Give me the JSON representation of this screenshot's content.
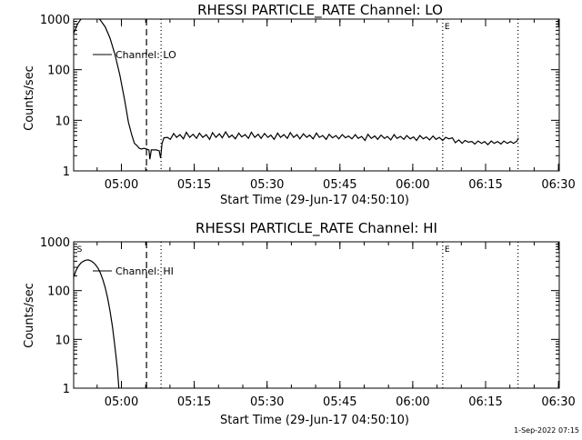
{
  "footer_timestamp": "1-Sep-2022 07:15",
  "chart_data": [
    {
      "type": "line",
      "title": "RHESSI PARTICLE_RATE Channel: LO",
      "xlabel": "Start Time (29-Jun-17 04:50:10)",
      "ylabel": "Counts/sec",
      "yscale": "log",
      "xlim_minutes_from_start": [
        0,
        100
      ],
      "ylim": [
        1,
        1000
      ],
      "x_ticks": [
        {
          "min": 9.83,
          "label": "05:00"
        },
        {
          "min": 24.83,
          "label": "05:15"
        },
        {
          "min": 39.83,
          "label": "05:30"
        },
        {
          "min": 54.83,
          "label": "05:45"
        },
        {
          "min": 69.83,
          "label": "06:00"
        },
        {
          "min": 84.83,
          "label": "06:15"
        },
        {
          "min": 99.83,
          "label": "06:30"
        }
      ],
      "y_ticks": [
        {
          "value": 1,
          "label": "1"
        },
        {
          "value": 10,
          "label": "10"
        },
        {
          "value": 100,
          "label": "100"
        },
        {
          "value": 1000,
          "label": "1000"
        }
      ],
      "legend": "Channel: LO",
      "legend_position": "upper-left",
      "vertical_lines": [
        {
          "min": 15.0,
          "style": "dashed",
          "label": ""
        },
        {
          "min": 18.0,
          "style": "dotted",
          "label": ""
        },
        {
          "min": 76.0,
          "style": "dotted",
          "label": "E"
        },
        {
          "min": 91.5,
          "style": "dotted",
          "label": ""
        }
      ],
      "series": [
        {
          "points": [
            [
              0.0,
              520
            ],
            [
              0.8,
              800
            ],
            [
              1.5,
              1000
            ],
            [
              2.5,
              1150
            ],
            [
              3.5,
              1200
            ],
            [
              4.5,
              1150
            ],
            [
              5.5,
              950
            ],
            [
              6.5,
              700
            ],
            [
              7.5,
              420
            ],
            [
              8.5,
              200
            ],
            [
              9.5,
              80
            ],
            [
              10.5,
              25
            ],
            [
              11.3,
              9
            ],
            [
              12.0,
              5
            ],
            [
              12.5,
              3.5
            ],
            [
              13.0,
              3.2
            ],
            [
              13.5,
              2.8
            ],
            [
              14.0,
              2.7
            ],
            [
              14.5,
              2.8
            ],
            [
              15.0,
              2.7
            ],
            [
              15.5,
              2.6
            ],
            [
              15.7,
              1.7
            ],
            [
              16.0,
              2.6
            ],
            [
              17.0,
              2.6
            ],
            [
              17.6,
              2.5
            ],
            [
              17.9,
              1.8
            ],
            [
              18.2,
              3.5
            ],
            [
              18.6,
              4.5
            ],
            [
              19.3,
              4.6
            ],
            [
              19.9,
              4.2
            ],
            [
              20.6,
              5.5
            ],
            [
              21.2,
              4.6
            ],
            [
              21.9,
              5.2
            ],
            [
              22.6,
              4.3
            ],
            [
              23.2,
              5.8
            ],
            [
              23.9,
              4.6
            ],
            [
              24.6,
              5.3
            ],
            [
              25.3,
              4.4
            ],
            [
              25.9,
              5.6
            ],
            [
              26.6,
              4.6
            ],
            [
              27.3,
              5.2
            ],
            [
              28.0,
              4.2
            ],
            [
              28.6,
              5.7
            ],
            [
              29.3,
              4.6
            ],
            [
              30.0,
              5.4
            ],
            [
              30.6,
              4.5
            ],
            [
              31.3,
              5.9
            ],
            [
              32.0,
              4.6
            ],
            [
              32.6,
              5.1
            ],
            [
              33.3,
              4.3
            ],
            [
              34.0,
              5.6
            ],
            [
              34.6,
              4.7
            ],
            [
              35.3,
              5.2
            ],
            [
              36.0,
              4.4
            ],
            [
              36.6,
              5.8
            ],
            [
              37.3,
              4.6
            ],
            [
              38.0,
              5.3
            ],
            [
              38.6,
              4.4
            ],
            [
              39.3,
              5.5
            ],
            [
              40.0,
              4.6
            ],
            [
              40.6,
              5.1
            ],
            [
              41.3,
              4.2
            ],
            [
              42.0,
              5.6
            ],
            [
              42.6,
              4.6
            ],
            [
              43.3,
              5.2
            ],
            [
              44.0,
              4.4
            ],
            [
              44.6,
              5.7
            ],
            [
              45.3,
              4.6
            ],
            [
              46.0,
              5.2
            ],
            [
              46.6,
              4.3
            ],
            [
              47.3,
              5.4
            ],
            [
              48.0,
              4.6
            ],
            [
              48.6,
              5.1
            ],
            [
              49.3,
              4.3
            ],
            [
              50.0,
              5.6
            ],
            [
              50.6,
              4.6
            ],
            [
              51.3,
              5.0
            ],
            [
              52.0,
              4.2
            ],
            [
              52.6,
              5.3
            ],
            [
              53.3,
              4.5
            ],
            [
              54.0,
              5.0
            ],
            [
              54.6,
              4.3
            ],
            [
              55.3,
              5.2
            ],
            [
              56.0,
              4.5
            ],
            [
              56.6,
              4.9
            ],
            [
              57.3,
              4.3
            ],
            [
              58.0,
              5.2
            ],
            [
              58.6,
              4.4
            ],
            [
              59.3,
              4.8
            ],
            [
              60.0,
              4.0
            ],
            [
              60.6,
              5.3
            ],
            [
              61.3,
              4.4
            ],
            [
              62.0,
              4.9
            ],
            [
              62.6,
              4.2
            ],
            [
              63.3,
              5.1
            ],
            [
              64.0,
              4.4
            ],
            [
              64.6,
              4.8
            ],
            [
              65.3,
              4.1
            ],
            [
              66.0,
              5.2
            ],
            [
              66.6,
              4.4
            ],
            [
              67.3,
              4.8
            ],
            [
              68.0,
              4.2
            ],
            [
              68.6,
              5.0
            ],
            [
              69.3,
              4.3
            ],
            [
              70.0,
              4.7
            ],
            [
              70.6,
              4.0
            ],
            [
              71.3,
              5.0
            ],
            [
              72.0,
              4.3
            ],
            [
              72.6,
              4.7
            ],
            [
              73.3,
              4.1
            ],
            [
              74.0,
              4.9
            ],
            [
              74.6,
              4.2
            ],
            [
              75.3,
              4.6
            ],
            [
              76.0,
              4.0
            ],
            [
              76.6,
              4.6
            ],
            [
              77.3,
              4.3
            ],
            [
              78.0,
              4.5
            ],
            [
              78.6,
              3.6
            ],
            [
              79.3,
              4.1
            ],
            [
              80.0,
              3.5
            ],
            [
              80.6,
              4.0
            ],
            [
              81.3,
              3.7
            ],
            [
              82.0,
              3.8
            ],
            [
              82.6,
              3.4
            ],
            [
              83.3,
              3.9
            ],
            [
              84.0,
              3.5
            ],
            [
              84.6,
              3.8
            ],
            [
              85.3,
              3.3
            ],
            [
              86.0,
              3.9
            ],
            [
              86.6,
              3.5
            ],
            [
              87.3,
              3.8
            ],
            [
              88.0,
              3.4
            ],
            [
              88.6,
              3.9
            ],
            [
              89.3,
              3.5
            ],
            [
              90.0,
              3.8
            ],
            [
              90.6,
              3.5
            ],
            [
              91.3,
              3.9
            ],
            [
              91.6,
              4.5
            ]
          ]
        }
      ]
    },
    {
      "type": "line",
      "title": "RHESSI PARTICLE_RATE Channel: HI",
      "xlabel": "Start Time (29-Jun-17 04:50:10)",
      "ylabel": "Counts/sec",
      "yscale": "log",
      "xlim_minutes_from_start": [
        0,
        100
      ],
      "ylim": [
        1,
        1000
      ],
      "x_ticks": [
        {
          "min": 9.83,
          "label": "05:00"
        },
        {
          "min": 24.83,
          "label": "05:15"
        },
        {
          "min": 39.83,
          "label": "05:30"
        },
        {
          "min": 54.83,
          "label": "05:45"
        },
        {
          "min": 69.83,
          "label": "06:00"
        },
        {
          "min": 84.83,
          "label": "06:15"
        },
        {
          "min": 99.83,
          "label": "06:30"
        }
      ],
      "y_ticks": [
        {
          "value": 1,
          "label": "1"
        },
        {
          "value": 10,
          "label": "10"
        },
        {
          "value": 100,
          "label": "100"
        },
        {
          "value": 1000,
          "label": "1000"
        }
      ],
      "legend": "Channel: HI",
      "legend_position": "upper-left",
      "vertical_lines": [
        {
          "min": 0.3,
          "style": "none",
          "label": "S"
        },
        {
          "min": 15.0,
          "style": "dashed",
          "label": ""
        },
        {
          "min": 18.0,
          "style": "dotted",
          "label": ""
        },
        {
          "min": 76.0,
          "style": "dotted",
          "label": "E"
        },
        {
          "min": 91.5,
          "style": "dotted",
          "label": ""
        }
      ],
      "series": [
        {
          "points": [
            [
              0.0,
              190
            ],
            [
              0.5,
              260
            ],
            [
              1.0,
              320
            ],
            [
              1.5,
              370
            ],
            [
              2.0,
              400
            ],
            [
              2.5,
              420
            ],
            [
              3.0,
              425
            ],
            [
              3.5,
              410
            ],
            [
              4.0,
              380
            ],
            [
              4.5,
              340
            ],
            [
              5.0,
              290
            ],
            [
              5.5,
              230
            ],
            [
              6.0,
              170
            ],
            [
              6.5,
              115
            ],
            [
              7.0,
              70
            ],
            [
              7.5,
              38
            ],
            [
              8.0,
              18
            ],
            [
              8.5,
              7
            ],
            [
              9.0,
              2.5
            ],
            [
              9.3,
              1.0
            ]
          ]
        }
      ]
    }
  ]
}
